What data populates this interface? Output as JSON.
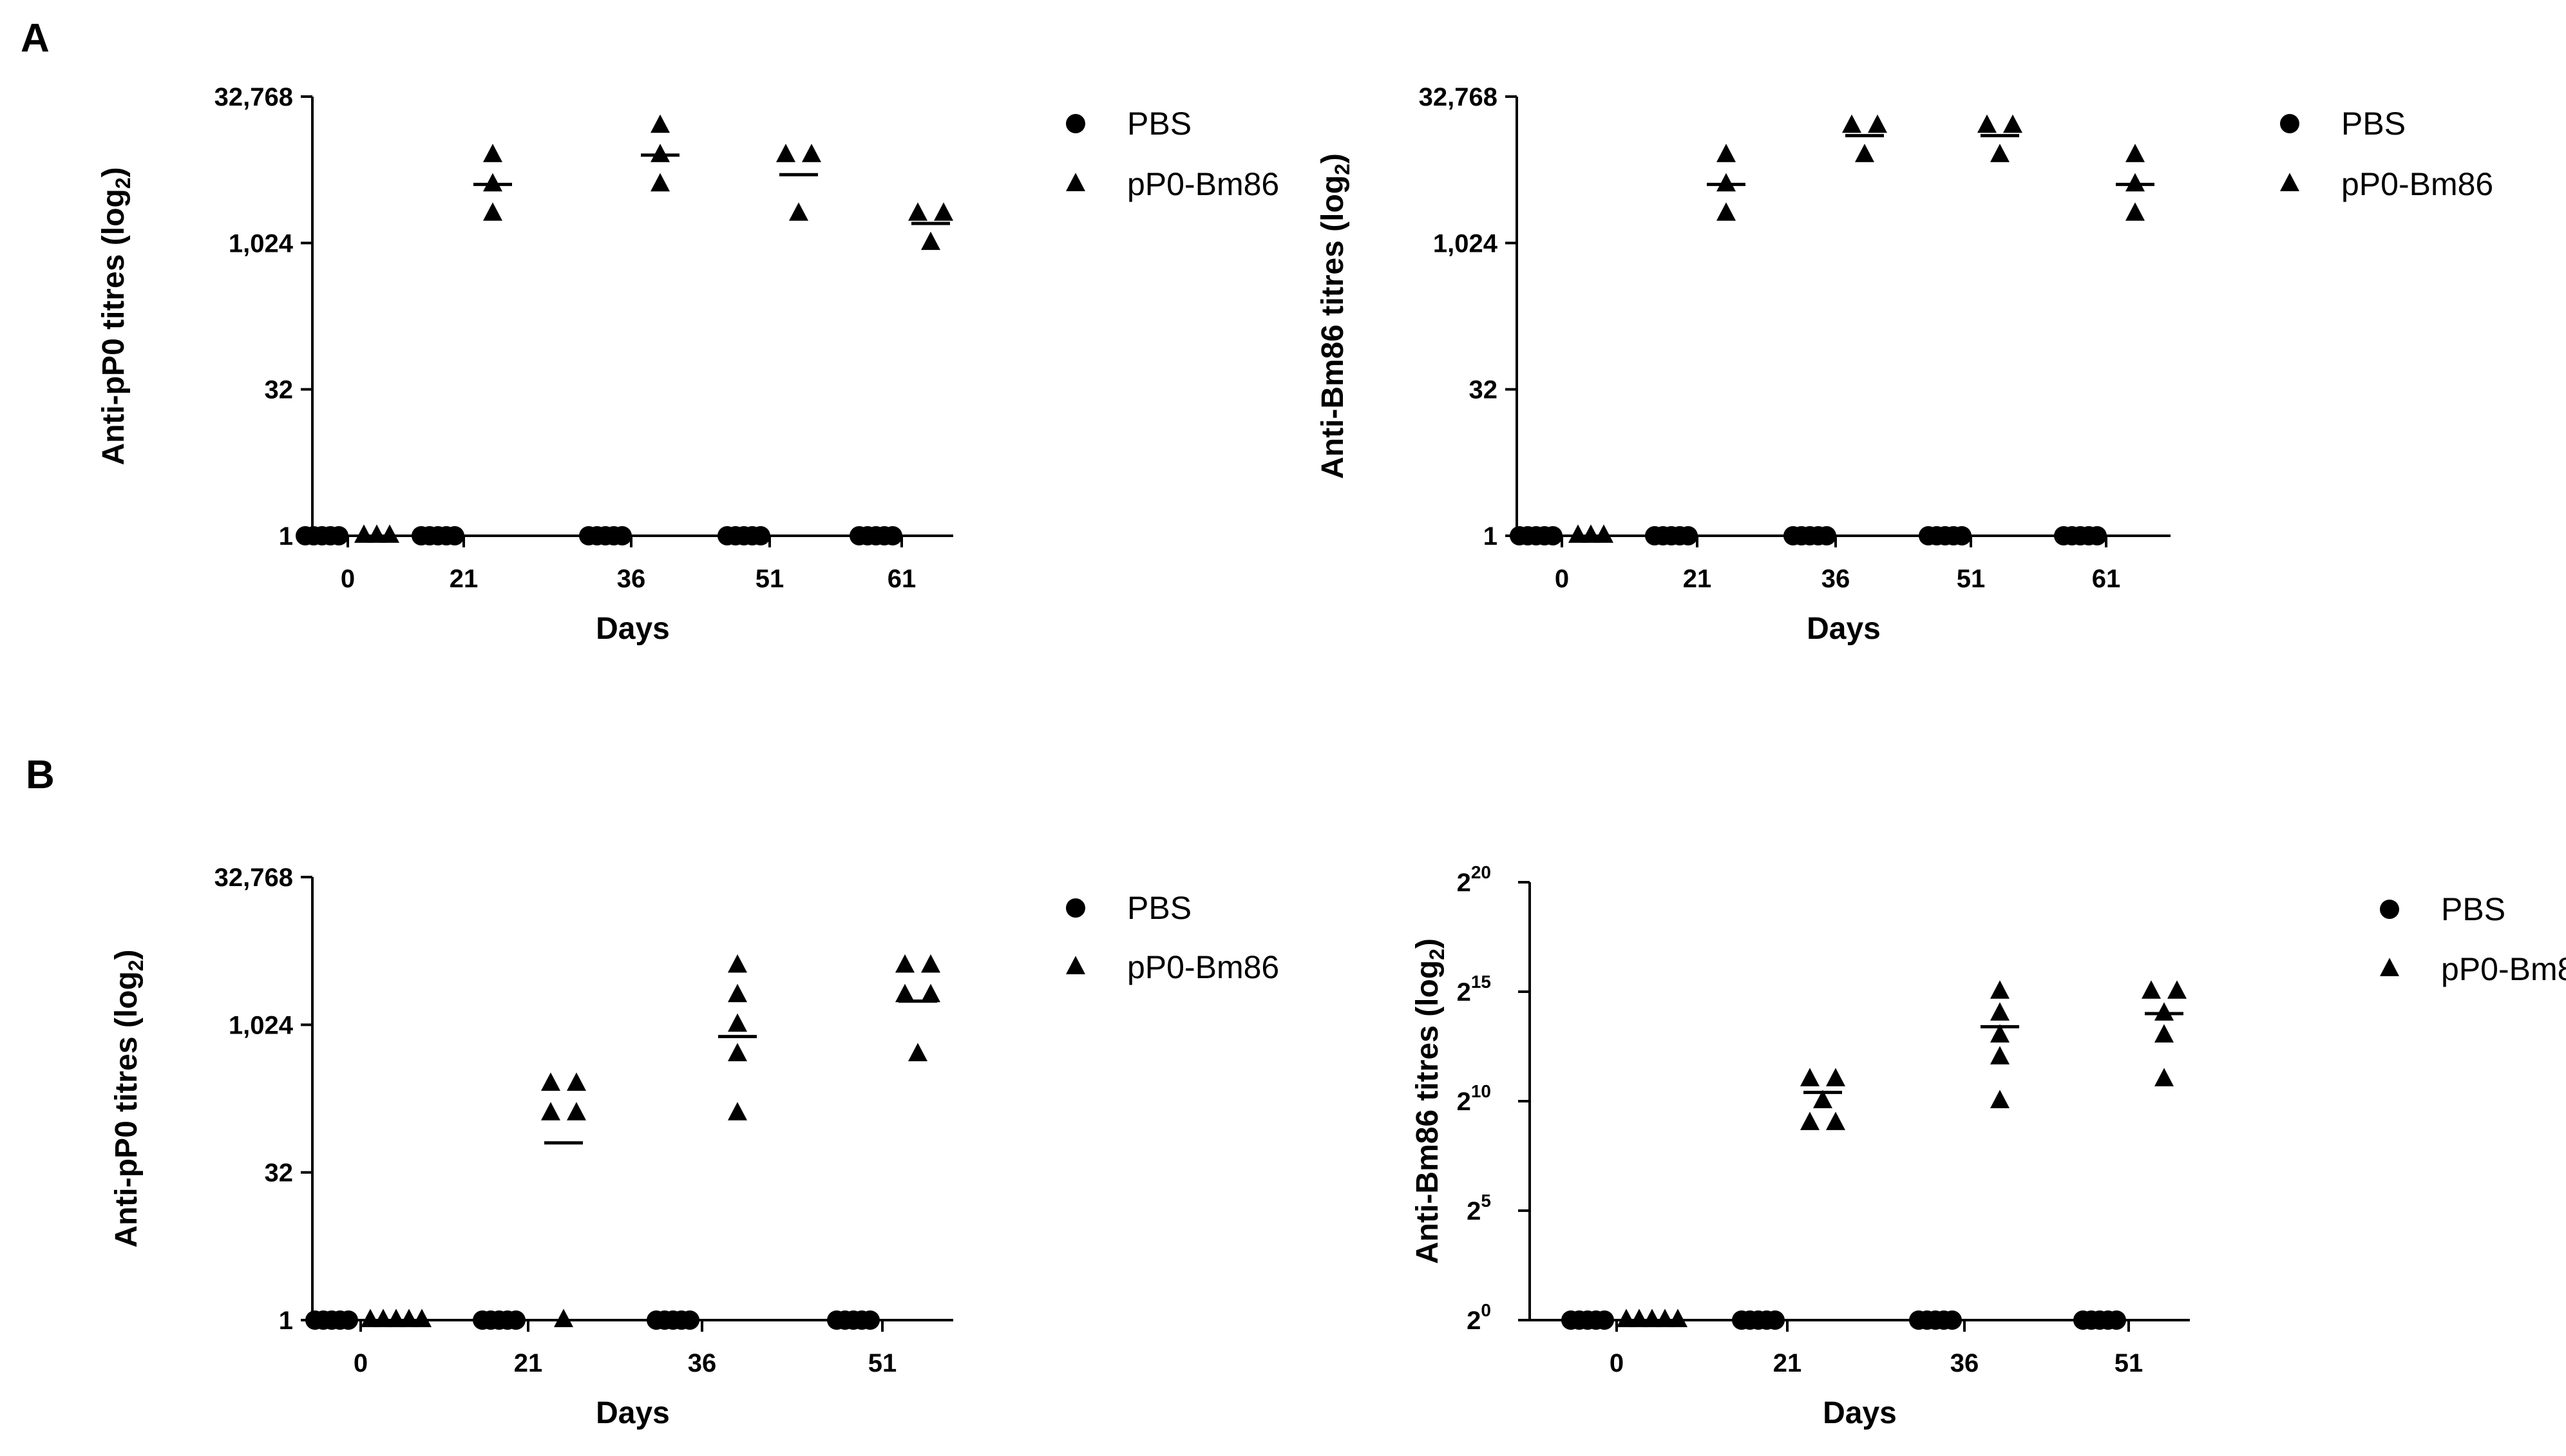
{
  "panel_labels": [
    "A",
    "B"
  ],
  "chart_data": [
    {
      "panel": "A",
      "type": "scatter",
      "ylabel": "Anti-pP0 titres (log2)",
      "xlabel": "Days",
      "y_scale": "log2",
      "ylim": [
        1,
        32768
      ],
      "y_ticks": [
        1,
        32,
        1024,
        32768
      ],
      "y_tick_labels": [
        "1",
        "32",
        "1,024",
        "32,768"
      ],
      "categories": [
        "0",
        "21",
        "36",
        "51",
        "61"
      ],
      "legend": [
        "PBS",
        "pP0-Bm86"
      ],
      "legend_position": "right",
      "series": [
        {
          "name": "PBS",
          "marker": "circle",
          "values": [
            [
              1,
              1,
              1,
              1,
              1
            ],
            [
              1,
              1,
              1,
              1,
              1
            ],
            [
              1,
              1,
              1,
              1,
              1
            ],
            [
              1,
              1,
              1,
              1,
              1
            ],
            [
              1,
              1,
              1,
              1,
              1
            ]
          ]
        },
        {
          "name": "pP0-Bm86",
          "marker": "triangle",
          "values": [
            [
              1,
              1,
              1
            ],
            [
              2048,
              4096,
              8192
            ],
            [
              4096,
              8192,
              16384
            ],
            [
              2048,
              8192,
              8192
            ],
            [
              1024,
              2048,
              2048
            ]
          ],
          "means": [
            1,
            4096,
            8192,
            5160,
            1625
          ]
        }
      ]
    },
    {
      "panel": "A",
      "type": "scatter",
      "ylabel": "Anti-Bm86 titres (log2)",
      "xlabel": "Days",
      "y_scale": "log2",
      "ylim": [
        1,
        32768
      ],
      "y_ticks": [
        1,
        32,
        1024,
        32768
      ],
      "y_tick_labels": [
        "1",
        "32",
        "1,024",
        "32,768"
      ],
      "categories": [
        "0",
        "21",
        "36",
        "51",
        "61"
      ],
      "legend": [
        "PBS",
        "pP0-Bm86"
      ],
      "legend_position": "right",
      "series": [
        {
          "name": "PBS",
          "marker": "circle",
          "values": [
            [
              1,
              1,
              1,
              1,
              1
            ],
            [
              1,
              1,
              1,
              1,
              1
            ],
            [
              1,
              1,
              1,
              1,
              1
            ],
            [
              1,
              1,
              1,
              1,
              1
            ],
            [
              1,
              1,
              1,
              1,
              1
            ]
          ]
        },
        {
          "name": "pP0-Bm86",
          "marker": "triangle",
          "values": [
            [
              1,
              1,
              1
            ],
            [
              2048,
              4096,
              8192
            ],
            [
              8192,
              16384,
              16384
            ],
            [
              8192,
              16384,
              16384
            ],
            [
              2048,
              4096,
              8192
            ]
          ],
          "means": [
            1,
            4096,
            13004,
            13004,
            4096
          ]
        }
      ]
    },
    {
      "panel": "B",
      "type": "scatter",
      "ylabel": "Anti-pP0 titres (log2)",
      "xlabel": "Days",
      "y_scale": "log2",
      "ylim": [
        1,
        32768
      ],
      "y_ticks": [
        1,
        32,
        1024,
        32768
      ],
      "y_tick_labels": [
        "1",
        "32",
        "1,024",
        "32,768"
      ],
      "categories": [
        "0",
        "21",
        "36",
        "51"
      ],
      "legend": [
        "PBS",
        "pP0-Bm86"
      ],
      "legend_position": "right",
      "series": [
        {
          "name": "PBS",
          "marker": "circle",
          "values": [
            [
              1,
              1,
              1,
              1,
              1
            ],
            [
              1,
              1,
              1,
              1,
              1
            ],
            [
              1,
              1,
              1,
              1,
              1
            ],
            [
              1,
              1,
              1,
              1,
              1
            ]
          ]
        },
        {
          "name": "pP0-Bm86",
          "marker": "triangle",
          "values": [
            [
              1,
              1,
              1,
              1,
              1
            ],
            [
              1,
              128,
              128,
              256,
              256
            ],
            [
              128,
              512,
              1024,
              2048,
              4096
            ],
            [
              512,
              2048,
              2048,
              4096,
              4096
            ]
          ],
          "means": [
            1,
            64,
            776,
            1782
          ]
        }
      ]
    },
    {
      "panel": "B",
      "type": "scatter",
      "ylabel": "Anti-Bm86 titres (log2)",
      "xlabel": "Days",
      "y_scale": "log2",
      "ylim": [
        1,
        1048576
      ],
      "y_ticks": [
        1,
        32,
        1024,
        32768,
        1048576
      ],
      "y_tick_labels": [
        "2",
        "2",
        "2",
        "2",
        "2"
      ],
      "y_tick_exponents": [
        "0",
        "5",
        "10",
        "15",
        "20"
      ],
      "categories": [
        "0",
        "21",
        "36",
        "51"
      ],
      "legend": [
        "PBS",
        "pP0-Bm86"
      ],
      "legend_position": "right",
      "series": [
        {
          "name": "PBS",
          "marker": "circle",
          "values": [
            [
              1,
              1,
              1,
              1,
              1
            ],
            [
              1,
              1,
              1,
              1,
              1
            ],
            [
              1,
              1,
              1,
              1,
              1
            ],
            [
              1,
              1,
              1,
              1,
              1
            ]
          ]
        },
        {
          "name": "pP0-Bm86",
          "marker": "triangle",
          "values": [
            [
              1,
              1,
              1,
              1,
              1
            ],
            [
              512,
              512,
              1024,
              2048,
              2048
            ],
            [
              1024,
              4096,
              8192,
              16384,
              32768
            ],
            [
              2048,
              8192,
              16384,
              32768,
              32768
            ]
          ],
          "means": [
            1,
            1351,
            10809,
            16384
          ]
        }
      ]
    }
  ]
}
